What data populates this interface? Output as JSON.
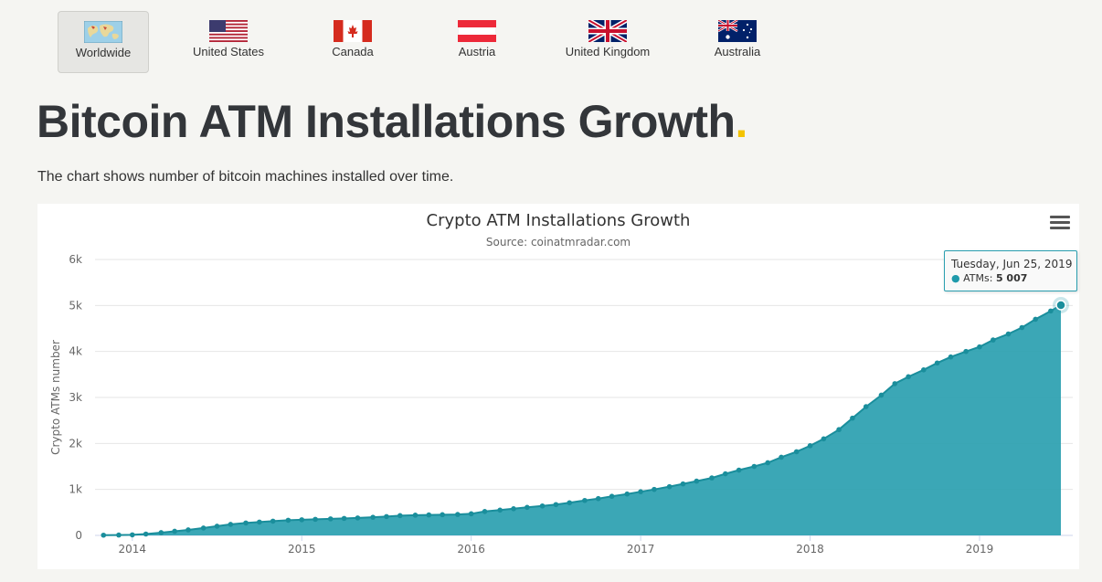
{
  "country_tabs": [
    {
      "label": "Worldwide",
      "icon": "globe-flag-icon",
      "active": true
    },
    {
      "label": "United States",
      "icon": "us-flag-icon",
      "active": false
    },
    {
      "label": "Canada",
      "icon": "canada-flag-icon",
      "active": false
    },
    {
      "label": "Austria",
      "icon": "austria-flag-icon",
      "active": false
    },
    {
      "label": "United Kingdom",
      "icon": "uk-flag-icon",
      "active": false
    },
    {
      "label": "Australia",
      "icon": "australia-flag-icon",
      "active": false
    }
  ],
  "page": {
    "title": "Bitcoin ATM Installations Growth",
    "title_dot": ".",
    "subtitle": "The chart shows number of bitcoin machines installed over time."
  },
  "colors": {
    "accent_dot": "#f4c300",
    "series_line": "#1a8e9c",
    "series_fill": "#2a9fb0",
    "title_text": "#33363a"
  },
  "tooltip": {
    "date": "Tuesday, Jun 25, 2019",
    "series": "ATMs",
    "value": "5 007"
  },
  "chart_data": {
    "type": "area",
    "title": "Crypto ATM Installations Growth",
    "subtitle": "Source: coinatmradar.com",
    "xlabel": "",
    "ylabel": "Crypto ATMs number",
    "x_tick_labels": [
      "2014",
      "2015",
      "2016",
      "2017",
      "2018",
      "2019"
    ],
    "y_tick_labels": [
      "0",
      "1k",
      "2k",
      "3k",
      "4k",
      "5k",
      "6k"
    ],
    "xlim": [
      2013.78,
      2019.55
    ],
    "ylim": [
      0,
      6000
    ],
    "grid": true,
    "legend": "none",
    "series": [
      {
        "name": "ATMs",
        "x": [
          2013.83,
          2013.92,
          2014.0,
          2014.08,
          2014.17,
          2014.25,
          2014.33,
          2014.42,
          2014.5,
          2014.58,
          2014.67,
          2014.75,
          2014.83,
          2014.92,
          2015.0,
          2015.08,
          2015.17,
          2015.25,
          2015.33,
          2015.42,
          2015.5,
          2015.58,
          2015.67,
          2015.75,
          2015.83,
          2015.92,
          2016.0,
          2016.08,
          2016.17,
          2016.25,
          2016.33,
          2016.42,
          2016.5,
          2016.58,
          2016.67,
          2016.75,
          2016.83,
          2016.92,
          2017.0,
          2017.08,
          2017.17,
          2017.25,
          2017.33,
          2017.42,
          2017.5,
          2017.58,
          2017.67,
          2017.75,
          2017.83,
          2017.92,
          2018.0,
          2018.08,
          2018.17,
          2018.25,
          2018.33,
          2018.42,
          2018.5,
          2018.58,
          2018.67,
          2018.75,
          2018.83,
          2018.92,
          2019.0,
          2019.08,
          2019.17,
          2019.25,
          2019.33,
          2019.42,
          2019.48
        ],
        "values": [
          5,
          8,
          12,
          30,
          60,
          90,
          120,
          160,
          200,
          240,
          270,
          290,
          310,
          330,
          340,
          350,
          360,
          370,
          380,
          395,
          410,
          430,
          440,
          445,
          450,
          455,
          470,
          520,
          550,
          580,
          610,
          640,
          670,
          710,
          760,
          800,
          850,
          900,
          950,
          1000,
          1060,
          1120,
          1180,
          1250,
          1340,
          1420,
          1500,
          1580,
          1700,
          1820,
          1950,
          2100,
          2300,
          2550,
          2800,
          3050,
          3300,
          3450,
          3600,
          3750,
          3880,
          4000,
          4100,
          4250,
          4380,
          4520,
          4700,
          4880,
          5007
        ]
      }
    ]
  }
}
